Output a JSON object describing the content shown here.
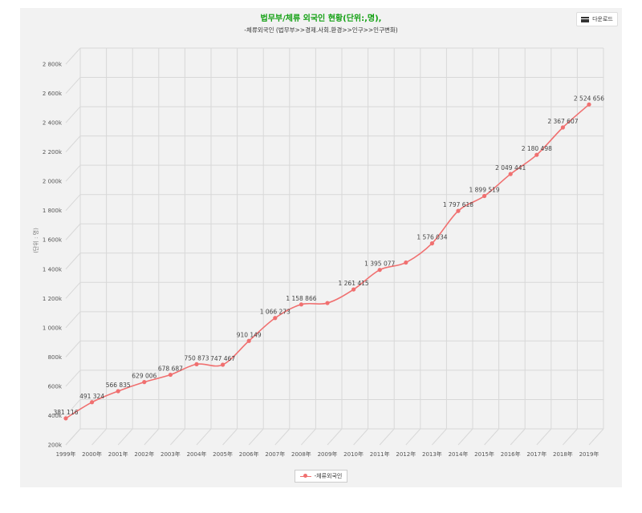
{
  "download": {
    "label": "다운로드",
    "icon": "menu-icon"
  },
  "chart_data": {
    "type": "line",
    "title": "법무부/체류 외국인 현황(단위:,명),",
    "subtitle": "-체류외국인 (법무부>>경제.사회.환경>>인구>>인구변화)",
    "ylabel": "(단위 : 명)",
    "xlabel": "",
    "categories": [
      "1999年",
      "2000年",
      "2001年",
      "2002年",
      "2003年",
      "2004年",
      "2005年",
      "2006年",
      "2007年",
      "2008年",
      "2009年",
      "2010年",
      "2011年",
      "2012年",
      "2013年",
      "2014年",
      "2015年",
      "2016年",
      "2017年",
      "2018年",
      "2019年"
    ],
    "series": [
      {
        "name": "-체류외국인",
        "color": "#f07070",
        "values": [
          381116,
          491324,
          566835,
          629006,
          678687,
          750873,
          747467,
          910149,
          1066273,
          1158866,
          1168477,
          1261415,
          1395077,
          1445103,
          1576034,
          1797618,
          1899519,
          2049441,
          2180498,
          2367607,
          2524656
        ],
        "data_labels": [
          "381 116",
          "491 324",
          "566 835",
          "629 006",
          "678 687",
          "750 873",
          "747 467",
          "910 149",
          "1 066 273",
          "1 158 866",
          "",
          "1 261 415",
          "1 395 077",
          "",
          "1 576 034",
          "1 797 618",
          "1 899 519",
          "2 049 441",
          "2 180 498",
          "2 367 607",
          "2 524 656"
        ]
      }
    ],
    "yticks": [
      200000,
      400000,
      600000,
      800000,
      1000000,
      1200000,
      1400000,
      1600000,
      1800000,
      2000000,
      2200000,
      2400000,
      2600000,
      2800000
    ],
    "ytick_labels": [
      "200k",
      "400k",
      "600k",
      "800k",
      "1 000k",
      "1 200k",
      "1 400k",
      "1 600k",
      "1 800k",
      "2 000k",
      "2 200k",
      "2 400k",
      "2 600k",
      "2 800k"
    ],
    "ylim": [
      200000,
      2800000
    ],
    "grid": true,
    "legend_position": "bottom-center"
  }
}
